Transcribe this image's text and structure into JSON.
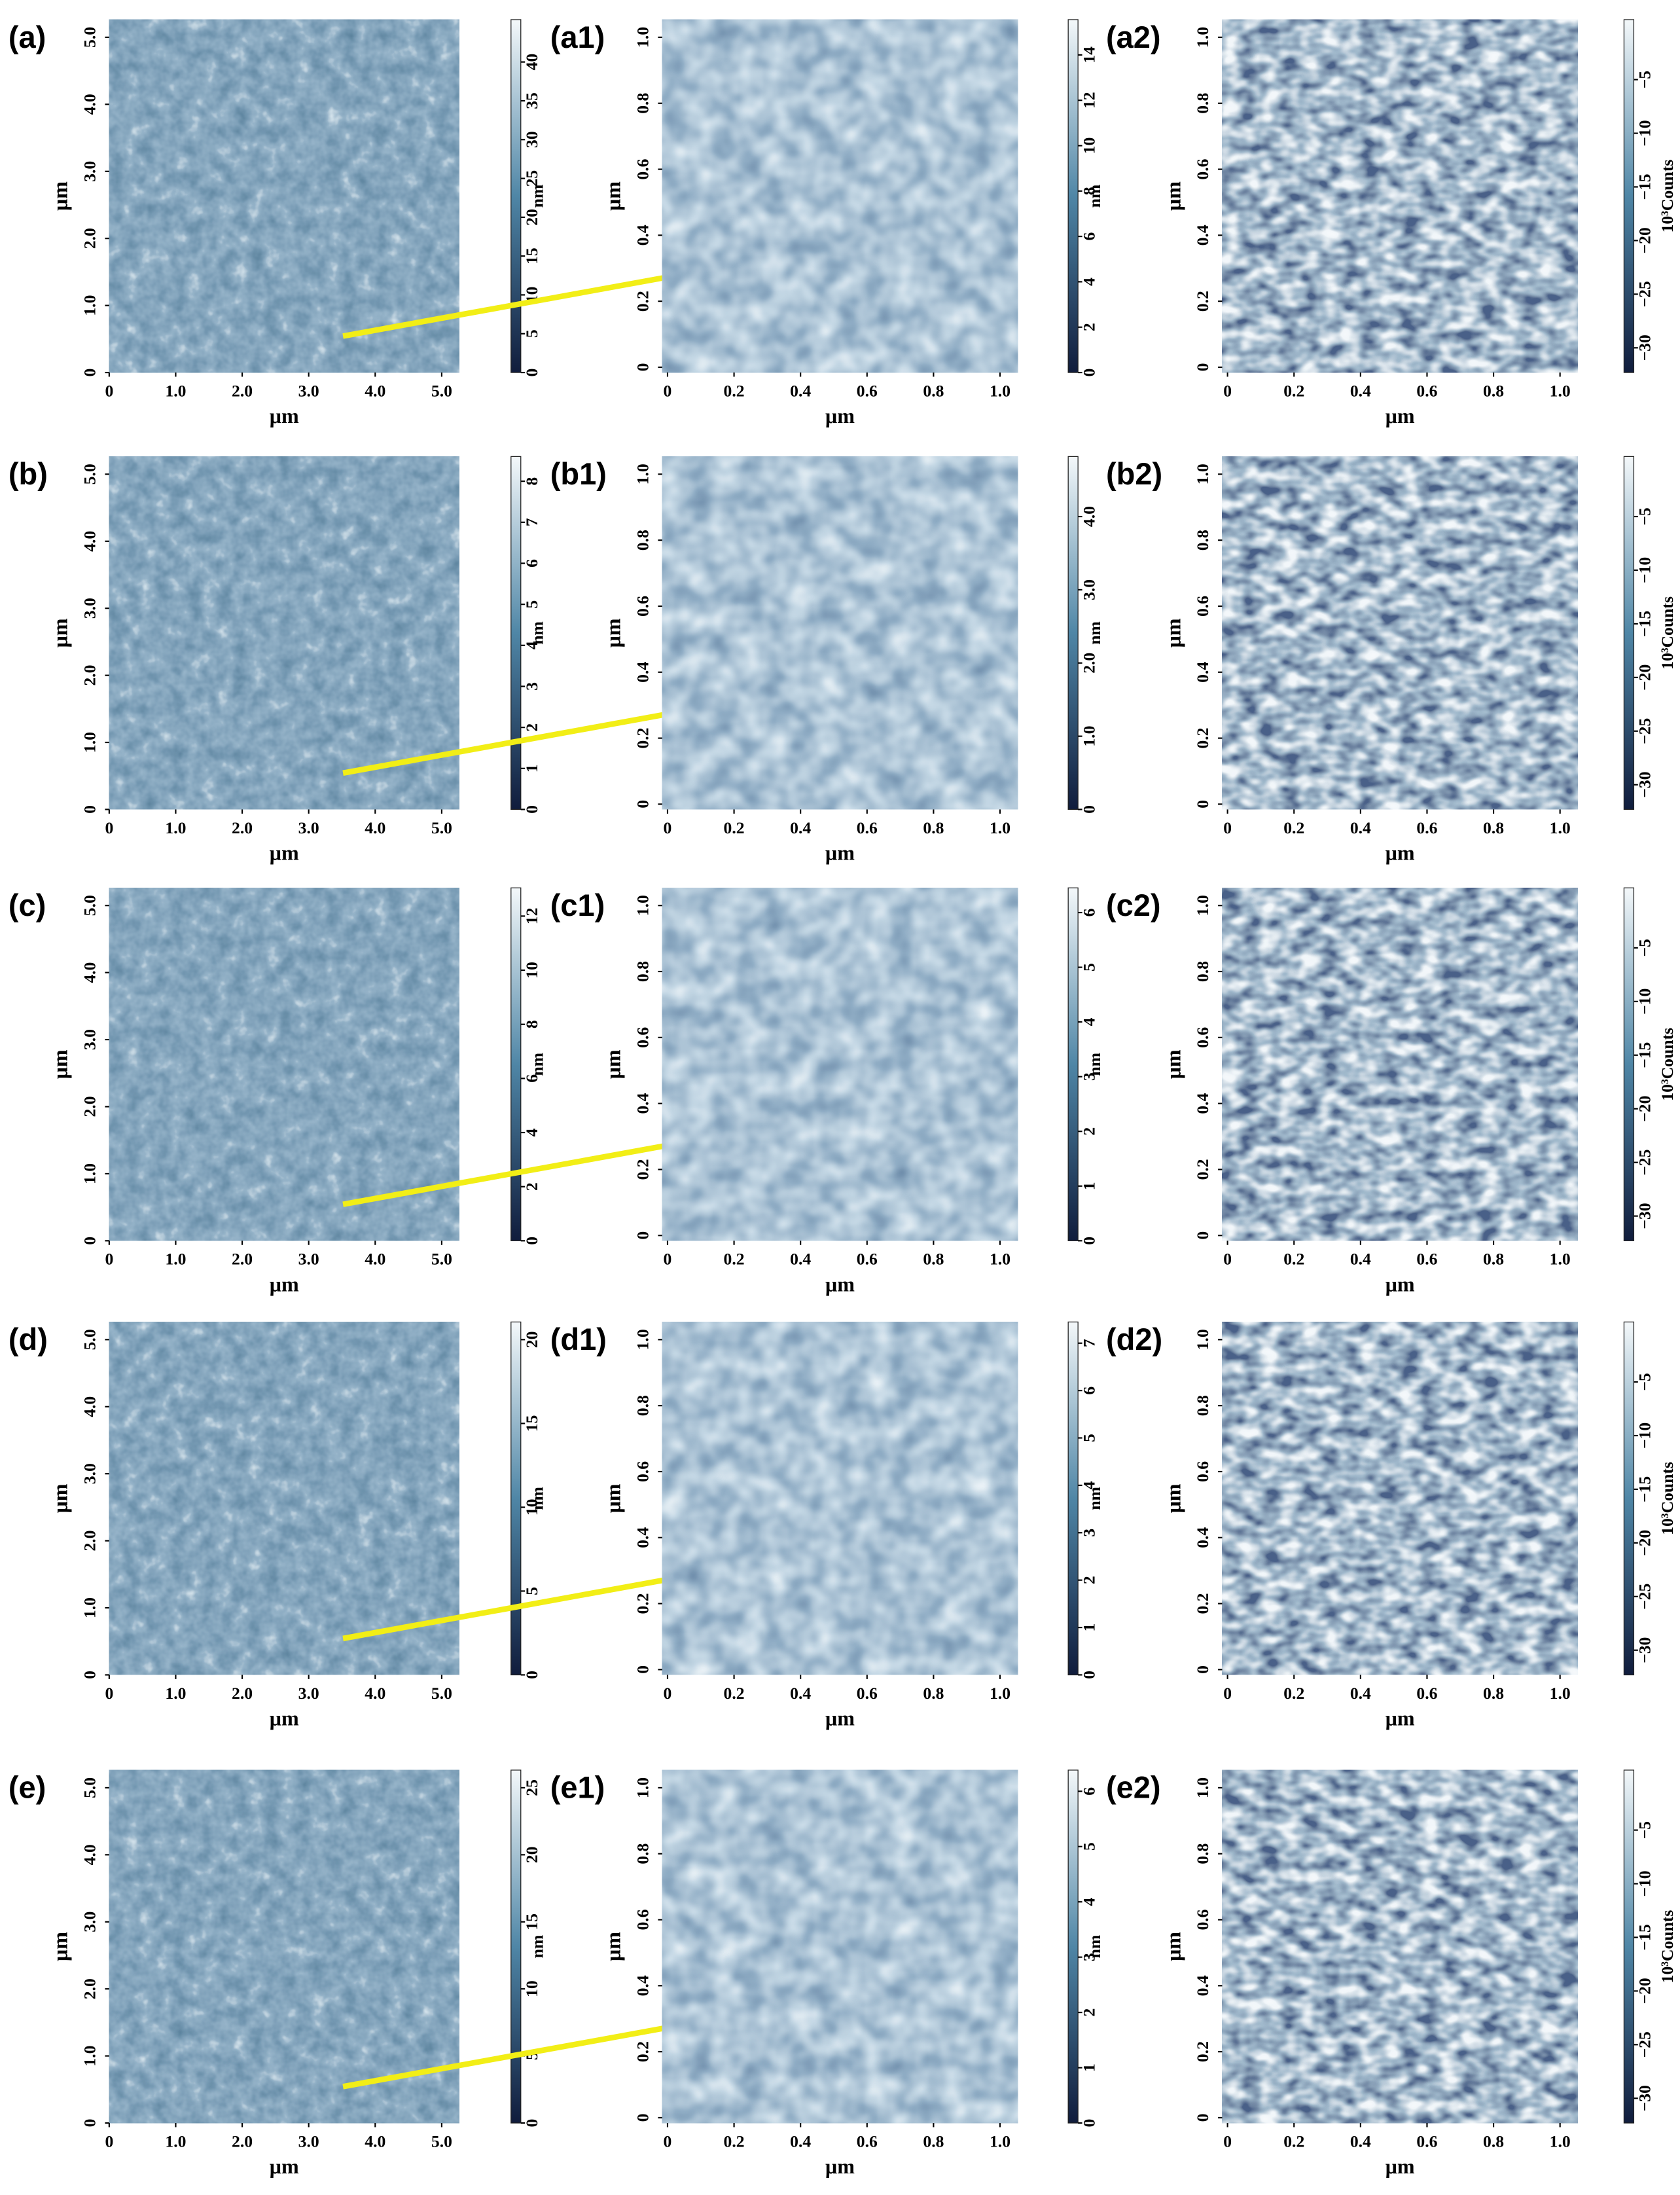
{
  "panels": [
    {
      "label": "(a)",
      "x_ticks": [
        "0",
        "1.0",
        "2.0",
        "3.0",
        "4.0",
        "5.0"
      ],
      "x_label": "μm",
      "y_ticks": [
        "0",
        "1.0",
        "2.0",
        "3.0",
        "4.0",
        "5.0"
      ],
      "y_label": "μm",
      "colorbar_ticks": [
        "0",
        "5",
        "10",
        "15",
        "20",
        "25",
        "30",
        "35",
        "40"
      ],
      "colorbar_label": "nm"
    },
    {
      "label": "(a1)",
      "x_ticks": [
        "0",
        "0.2",
        "0.4",
        "0.6",
        "0.8",
        "1.0"
      ],
      "x_label": "μm",
      "y_ticks": [
        "0",
        "0.2",
        "0.4",
        "0.6",
        "0.8",
        "1.0"
      ],
      "y_label": "μm",
      "colorbar_ticks": [
        "0",
        "2",
        "4",
        "6",
        "8",
        "10",
        "12",
        "14"
      ],
      "colorbar_label": "nm"
    },
    {
      "label": "(a2)",
      "x_ticks": [
        "0",
        "0.2",
        "0.4",
        "0.6",
        "0.8",
        "1.0"
      ],
      "x_label": "μm",
      "y_ticks": [
        "0",
        "0.2",
        "0.4",
        "0.6",
        "0.8",
        "1.0"
      ],
      "y_label": "μm",
      "colorbar_ticks": [
        "−30",
        "−25",
        "−20",
        "−15",
        "−10",
        "−5"
      ],
      "colorbar_label": "10³Counts"
    },
    {
      "label": "(b)",
      "x_ticks": [
        "0",
        "1.0",
        "2.0",
        "3.0",
        "4.0",
        "5.0"
      ],
      "x_label": "μm",
      "y_ticks": [
        "0",
        "1.0",
        "2.0",
        "3.0",
        "4.0",
        "5.0"
      ],
      "y_label": "μm",
      "colorbar_ticks": [
        "0",
        "1",
        "2",
        "3",
        "4",
        "5",
        "6",
        "7",
        "8"
      ],
      "colorbar_label": "nm"
    },
    {
      "label": "(b1)",
      "x_ticks": [
        "0",
        "0.2",
        "0.4",
        "0.6",
        "0.8",
        "1.0"
      ],
      "x_label": "μm",
      "y_ticks": [
        "0",
        "0.2",
        "0.4",
        "0.6",
        "0.8",
        "1.0"
      ],
      "y_label": "μm",
      "colorbar_ticks": [
        "0",
        "1.0",
        "2.0",
        "3.0",
        "4.0"
      ],
      "colorbar_label": "nm"
    },
    {
      "label": "(b2)",
      "x_ticks": [
        "0",
        "0.2",
        "0.4",
        "0.6",
        "0.8",
        "1.0"
      ],
      "x_label": "μm",
      "y_ticks": [
        "0",
        "0.2",
        "0.4",
        "0.6",
        "0.8",
        "1.0"
      ],
      "y_label": "μm",
      "colorbar_ticks": [
        "−30",
        "−25",
        "−20",
        "−15",
        "−10",
        "−5"
      ],
      "colorbar_label": "10³Counts"
    },
    {
      "label": "(c)",
      "x_ticks": [
        "0",
        "1.0",
        "2.0",
        "3.0",
        "4.0",
        "5.0"
      ],
      "x_label": "μm",
      "y_ticks": [
        "0",
        "1.0",
        "2.0",
        "3.0",
        "4.0",
        "5.0"
      ],
      "y_label": "μm",
      "colorbar_ticks": [
        "0",
        "2",
        "4",
        "6",
        "8",
        "10",
        "12"
      ],
      "colorbar_label": "nm"
    },
    {
      "label": "(c1)",
      "x_ticks": [
        "0",
        "0.2",
        "0.4",
        "0.6",
        "0.8",
        "1.0"
      ],
      "x_label": "μm",
      "y_ticks": [
        "0",
        "0.2",
        "0.4",
        "0.6",
        "0.8",
        "1.0"
      ],
      "y_label": "μm",
      "colorbar_ticks": [
        "0",
        "1",
        "2",
        "3",
        "4",
        "5",
        "6"
      ],
      "colorbar_label": "nm"
    },
    {
      "label": "(c2)",
      "x_ticks": [
        "0",
        "0.2",
        "0.4",
        "0.6",
        "0.8",
        "1.0"
      ],
      "x_label": "μm",
      "y_ticks": [
        "0",
        "0.2",
        "0.4",
        "0.6",
        "0.8",
        "1.0"
      ],
      "y_label": "μm",
      "colorbar_ticks": [
        "−30",
        "−25",
        "−20",
        "−15",
        "−10",
        "−5"
      ],
      "colorbar_label": "10³Counts"
    },
    {
      "label": "(d)",
      "x_ticks": [
        "0",
        "1.0",
        "2.0",
        "3.0",
        "4.0",
        "5.0"
      ],
      "x_label": "μm",
      "y_ticks": [
        "0",
        "1.0",
        "2.0",
        "3.0",
        "4.0",
        "5.0"
      ],
      "y_label": "μm",
      "colorbar_ticks": [
        "0",
        "5",
        "10",
        "15",
        "20"
      ],
      "colorbar_label": "nm"
    },
    {
      "label": "(d1)",
      "x_ticks": [
        "0",
        "0.2",
        "0.4",
        "0.6",
        "0.8",
        "1.0"
      ],
      "x_label": "μm",
      "y_ticks": [
        "0",
        "0.2",
        "0.4",
        "0.6",
        "0.8",
        "1.0"
      ],
      "y_label": "μm",
      "colorbar_ticks": [
        "0",
        "1",
        "2",
        "3",
        "4",
        "5",
        "6",
        "7"
      ],
      "colorbar_label": "nm"
    },
    {
      "label": "(d2)",
      "x_ticks": [
        "0",
        "0.2",
        "0.4",
        "0.6",
        "0.8",
        "1.0"
      ],
      "x_label": "μm",
      "y_ticks": [
        "0",
        "0.2",
        "0.4",
        "0.6",
        "0.8",
        "1.0"
      ],
      "y_label": "μm",
      "colorbar_ticks": [
        "−30",
        "−25",
        "−20",
        "−15",
        "−10",
        "−5"
      ],
      "colorbar_label": "10³Counts"
    },
    {
      "label": "(e)",
      "x_ticks": [
        "0",
        "1.0",
        "2.0",
        "3.0",
        "4.0",
        "5.0"
      ],
      "x_label": "μm",
      "y_ticks": [
        "0",
        "1.0",
        "2.0",
        "3.0",
        "4.0",
        "5.0"
      ],
      "y_label": "μm",
      "colorbar_ticks": [
        "0",
        "5",
        "10",
        "15",
        "20",
        "25"
      ],
      "colorbar_label": "nm"
    },
    {
      "label": "(e1)",
      "x_ticks": [
        "0",
        "0.2",
        "0.4",
        "0.6",
        "0.8",
        "1.0"
      ],
      "x_label": "μm",
      "y_ticks": [
        "0",
        "0.2",
        "0.4",
        "0.6",
        "0.8",
        "1.0"
      ],
      "y_label": "μm",
      "colorbar_ticks": [
        "0",
        "1",
        "2",
        "3",
        "4",
        "5",
        "6"
      ],
      "colorbar_label": "nm"
    },
    {
      "label": "(e2)",
      "x_ticks": [
        "0",
        "0.2",
        "0.4",
        "0.6",
        "0.8",
        "1.0"
      ],
      "x_label": "μm",
      "y_ticks": [
        "0",
        "0.2",
        "0.4",
        "0.6",
        "0.8",
        "1.0"
      ],
      "y_label": "μm",
      "colorbar_ticks": [
        "−30",
        "−25",
        "−20",
        "−15",
        "−10",
        "−5"
      ],
      "colorbar_label": "10³Counts"
    }
  ]
}
